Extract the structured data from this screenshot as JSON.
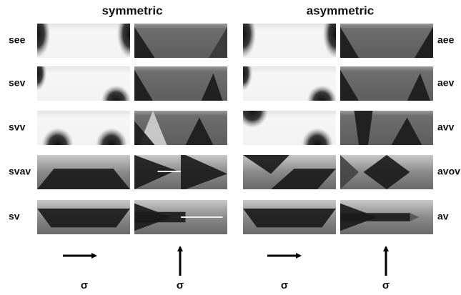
{
  "titles": [
    "symmetric",
    "asymmetric"
  ],
  "row_labels_left": [
    "see",
    "sev",
    "svv",
    "svav",
    "sv"
  ],
  "row_labels_right": [
    "aee",
    "aev",
    "avv",
    "avov",
    "av"
  ],
  "sigma_labels": [
    "σ",
    "σ",
    "σ",
    "σ"
  ]
}
